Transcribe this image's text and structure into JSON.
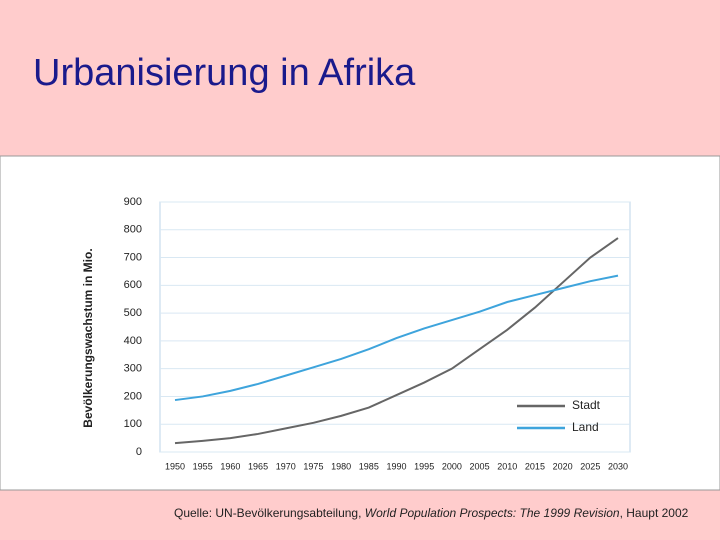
{
  "chart_data": {
    "type": "line",
    "title": "Urbanisierung in Afrika",
    "ylabel": "Bevölkerungswachstum in Mio.",
    "x": [
      1950,
      1955,
      1960,
      1965,
      1970,
      1975,
      1980,
      1985,
      1990,
      1995,
      2000,
      2005,
      2010,
      2015,
      2020,
      2025,
      2030
    ],
    "xlim": [
      1950,
      2030
    ],
    "xticks": [
      1950,
      1955,
      1960,
      1965,
      1970,
      1975,
      1980,
      1985,
      1990,
      1995,
      2000,
      2005,
      2010,
      2015,
      2020,
      2025,
      2030
    ],
    "ylim": [
      0,
      900
    ],
    "yticks": [
      0,
      100,
      200,
      300,
      400,
      500,
      600,
      700,
      800,
      900
    ],
    "grid": true,
    "legend": "lower right",
    "series": [
      {
        "name": "Stadt",
        "color": "#666666",
        "values": [
          32,
          40,
          50,
          65,
          85,
          105,
          130,
          160,
          205,
          250,
          300,
          370,
          440,
          520,
          610,
          700,
          770
        ]
      },
      {
        "name": "Land",
        "color": "#3ea4dc",
        "values": [
          187,
          200,
          220,
          245,
          275,
          305,
          335,
          370,
          410,
          445,
          475,
          505,
          540,
          565,
          590,
          615,
          635
        ]
      }
    ]
  },
  "footer": {
    "prefix": "Quelle: UN-Bevölkerungsabteilung,",
    "title": "World Population Prospects: The 1999 Revision",
    "suffix": ", Haupt 2002"
  }
}
